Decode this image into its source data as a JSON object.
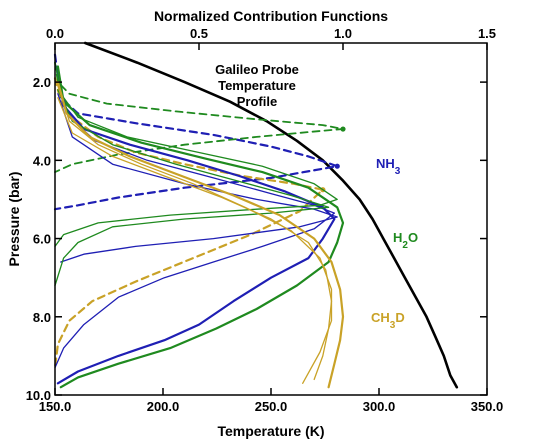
{
  "chart_data": {
    "type": "line",
    "title_top_axis": "Normalized Contribution Functions",
    "xlabel": "Temperature (K)",
    "ylabel": "Pressure (bar)",
    "xlim_bottom": [
      150,
      350
    ],
    "xlim_top": [
      0,
      1.5
    ],
    "ylim": [
      1.0,
      10.0
    ],
    "y_inverted": true,
    "grid": false,
    "x_ticks_bottom": [
      "150.0",
      "200.0",
      "250.0",
      "300.0",
      "350.0"
    ],
    "x_tick_values_bottom": [
      150,
      200,
      250,
      300,
      350
    ],
    "x_ticks_top": [
      "0.0",
      "0.5",
      "1.0",
      "1.5"
    ],
    "x_tick_values_top": [
      0,
      0.5,
      1.0,
      1.5
    ],
    "y_ticks": [
      "2.0",
      "4.0",
      "6.0",
      "8.0",
      "10.0"
    ],
    "y_tick_values": [
      2,
      4,
      6,
      8,
      10
    ],
    "annotations": [
      {
        "key": "galileo",
        "lines": [
          "Galileo Probe",
          "Temperature",
          "Profile"
        ],
        "color": "#000000"
      },
      {
        "key": "nh3",
        "text": "NH",
        "sub": "3",
        "color": "#1f1fb4"
      },
      {
        "key": "h2o",
        "text": "H",
        "sub": "2",
        "tail": "O",
        "color": "#1f8a1f"
      },
      {
        "key": "ch3d",
        "text": "CH",
        "sub": "3",
        "tail": "D",
        "color": "#c9a227"
      }
    ],
    "series": [
      {
        "key": "temperature",
        "color": "#000000",
        "width": 2.6,
        "style": "solid",
        "axis": "temperature",
        "points": [
          [
            164,
            1.0
          ],
          [
            188,
            1.5
          ],
          [
            210,
            2.0
          ],
          [
            231,
            2.5
          ],
          [
            248,
            3.0
          ],
          [
            262,
            3.5
          ],
          [
            274,
            4.0
          ],
          [
            283,
            4.5
          ],
          [
            291,
            5.0
          ],
          [
            297,
            5.5
          ],
          [
            302,
            6.0
          ],
          [
            307,
            6.5
          ],
          [
            312,
            7.0
          ],
          [
            317,
            7.5
          ],
          [
            322,
            8.0
          ],
          [
            326,
            8.5
          ],
          [
            330,
            9.0
          ],
          [
            333,
            9.5
          ],
          [
            336,
            9.8
          ]
        ]
      },
      {
        "key": "nh3-dashed",
        "color": "#1f1fb4",
        "width": 2.2,
        "style": "dashed",
        "axis": "contribution",
        "points": [
          [
            0.0,
            1.3
          ],
          [
            0.02,
            2.4
          ],
          [
            0.08,
            2.8
          ],
          [
            0.28,
            3.05
          ],
          [
            0.55,
            3.35
          ],
          [
            0.75,
            3.65
          ],
          [
            0.88,
            3.9
          ],
          [
            0.98,
            4.15
          ],
          [
            0.75,
            4.45
          ],
          [
            0.45,
            4.7
          ],
          [
            0.22,
            4.95
          ],
          [
            0.08,
            5.15
          ],
          [
            0.0,
            5.25
          ]
        ]
      },
      {
        "key": "h2o-dashed",
        "color": "#1f8a1f",
        "width": 1.8,
        "style": "dashed",
        "axis": "contribution",
        "points": [
          [
            0.0,
            1.5
          ],
          [
            0.01,
            2.0
          ],
          [
            0.05,
            2.3
          ],
          [
            0.18,
            2.55
          ],
          [
            0.42,
            2.75
          ],
          [
            0.7,
            2.95
          ],
          [
            0.93,
            3.1
          ],
          [
            1.0,
            3.2
          ],
          [
            0.92,
            3.25
          ],
          [
            0.7,
            3.4
          ],
          [
            0.45,
            3.6
          ],
          [
            0.22,
            3.85
          ],
          [
            0.06,
            4.1
          ],
          [
            0.0,
            4.3
          ]
        ]
      },
      {
        "key": "ch3d-dashed",
        "color": "#c9a227",
        "width": 2.2,
        "style": "dashed",
        "axis": "contribution",
        "points": [
          [
            0.0,
            1.9
          ],
          [
            0.02,
            2.5
          ],
          [
            0.06,
            2.9
          ],
          [
            0.15,
            3.4
          ],
          [
            0.28,
            3.8
          ],
          [
            0.45,
            4.1
          ],
          [
            0.65,
            4.4
          ],
          [
            0.83,
            4.6
          ],
          [
            0.93,
            4.75
          ],
          [
            0.85,
            5.3
          ],
          [
            0.68,
            5.9
          ],
          [
            0.48,
            6.5
          ],
          [
            0.28,
            7.1
          ],
          [
            0.13,
            7.6
          ],
          [
            0.05,
            8.1
          ],
          [
            0.01,
            8.7
          ],
          [
            0.0,
            9.3
          ]
        ]
      },
      {
        "key": "blue-a",
        "color": "#1f1fb4",
        "width": 2.2,
        "style": "solid",
        "axis": "contribution",
        "points": [
          [
            0.01,
            1.8
          ],
          [
            0.03,
            2.6
          ],
          [
            0.1,
            3.2
          ],
          [
            0.26,
            3.6
          ],
          [
            0.46,
            4.0
          ],
          [
            0.64,
            4.4
          ],
          [
            0.8,
            4.8
          ],
          [
            0.93,
            5.2
          ],
          [
            0.97,
            5.5
          ],
          [
            0.93,
            6.0
          ],
          [
            0.88,
            6.5
          ],
          [
            0.75,
            7.0
          ],
          [
            0.62,
            7.6
          ],
          [
            0.5,
            8.2
          ],
          [
            0.38,
            8.6
          ],
          [
            0.22,
            9.0
          ],
          [
            0.08,
            9.4
          ],
          [
            0.01,
            9.7
          ]
        ]
      },
      {
        "key": "blue-b",
        "color": "#1f1fb4",
        "width": 1.3,
        "style": "solid",
        "axis": "contribution",
        "points": [
          [
            0.01,
            2.0
          ],
          [
            0.05,
            2.9
          ],
          [
            0.14,
            3.5
          ],
          [
            0.32,
            4.0
          ],
          [
            0.55,
            4.45
          ],
          [
            0.75,
            4.85
          ],
          [
            0.9,
            5.15
          ],
          [
            0.97,
            5.35
          ],
          [
            0.9,
            5.75
          ],
          [
            0.72,
            6.2
          ],
          [
            0.55,
            6.6
          ],
          [
            0.38,
            7.0
          ],
          [
            0.22,
            7.5
          ],
          [
            0.1,
            8.2
          ],
          [
            0.03,
            8.8
          ],
          [
            0.0,
            9.3
          ]
        ]
      },
      {
        "key": "blue-c",
        "color": "#1f1fb4",
        "width": 1.3,
        "style": "solid",
        "axis": "contribution",
        "points": [
          [
            0.01,
            2.3
          ],
          [
            0.06,
            3.4
          ],
          [
            0.2,
            4.1
          ],
          [
            0.45,
            4.6
          ],
          [
            0.7,
            5.0
          ],
          [
            0.9,
            5.25
          ],
          [
            0.98,
            5.45
          ],
          [
            0.85,
            5.7
          ],
          [
            0.55,
            6.0
          ],
          [
            0.28,
            6.2
          ],
          [
            0.1,
            6.4
          ],
          [
            0.02,
            6.6
          ]
        ]
      },
      {
        "key": "green-a",
        "color": "#1f8a1f",
        "width": 2.2,
        "style": "solid",
        "axis": "contribution",
        "points": [
          [
            0.01,
            1.6
          ],
          [
            0.03,
            2.5
          ],
          [
            0.12,
            3.1
          ],
          [
            0.3,
            3.55
          ],
          [
            0.52,
            3.95
          ],
          [
            0.72,
            4.3
          ],
          [
            0.88,
            4.7
          ],
          [
            0.98,
            5.2
          ],
          [
            1.0,
            5.6
          ],
          [
            0.98,
            6.1
          ],
          [
            0.95,
            6.6
          ],
          [
            0.84,
            7.2
          ],
          [
            0.7,
            7.8
          ],
          [
            0.56,
            8.3
          ],
          [
            0.4,
            8.8
          ],
          [
            0.22,
            9.2
          ],
          [
            0.08,
            9.55
          ],
          [
            0.02,
            9.8
          ]
        ]
      },
      {
        "key": "green-b",
        "color": "#1f8a1f",
        "width": 1.3,
        "style": "solid",
        "axis": "contribution",
        "points": [
          [
            0.01,
            2.2
          ],
          [
            0.06,
            3.0
          ],
          [
            0.2,
            3.6
          ],
          [
            0.42,
            4.1
          ],
          [
            0.62,
            4.5
          ],
          [
            0.82,
            4.9
          ],
          [
            0.95,
            5.2
          ],
          [
            0.75,
            5.35
          ],
          [
            0.45,
            5.5
          ],
          [
            0.2,
            5.7
          ],
          [
            0.08,
            6.1
          ],
          [
            0.03,
            6.5
          ],
          [
            0.0,
            7.2
          ]
        ]
      },
      {
        "key": "green-c",
        "color": "#1f8a1f",
        "width": 1.3,
        "style": "solid",
        "axis": "contribution",
        "points": [
          [
            0.0,
            1.5
          ],
          [
            0.02,
            2.3
          ],
          [
            0.08,
            2.9
          ],
          [
            0.25,
            3.4
          ],
          [
            0.5,
            3.8
          ],
          [
            0.72,
            4.15
          ],
          [
            0.9,
            4.6
          ],
          [
            0.98,
            5.0
          ],
          [
            0.92,
            5.15
          ],
          [
            0.7,
            5.25
          ],
          [
            0.4,
            5.4
          ],
          [
            0.15,
            5.6
          ],
          [
            0.03,
            5.9
          ],
          [
            0.0,
            6.2
          ]
        ]
      },
      {
        "key": "ch3d-a",
        "color": "#c9a227",
        "width": 2.2,
        "style": "solid",
        "axis": "contribution",
        "points": [
          [
            0.01,
            2.0
          ],
          [
            0.04,
            2.8
          ],
          [
            0.12,
            3.4
          ],
          [
            0.26,
            3.9
          ],
          [
            0.44,
            4.4
          ],
          [
            0.62,
            4.9
          ],
          [
            0.78,
            5.4
          ],
          [
            0.9,
            6.0
          ],
          [
            0.96,
            6.6
          ],
          [
            0.99,
            7.3
          ],
          [
            1.0,
            8.0
          ],
          [
            0.99,
            8.6
          ],
          [
            0.97,
            9.2
          ],
          [
            0.95,
            9.8
          ]
        ]
      },
      {
        "key": "ch3d-b",
        "color": "#c9a227",
        "width": 1.3,
        "style": "solid",
        "axis": "contribution",
        "points": [
          [
            0.01,
            2.1
          ],
          [
            0.05,
            3.0
          ],
          [
            0.15,
            3.6
          ],
          [
            0.3,
            4.1
          ],
          [
            0.48,
            4.6
          ],
          [
            0.66,
            5.2
          ],
          [
            0.82,
            5.8
          ],
          [
            0.92,
            6.5
          ],
          [
            0.96,
            7.3
          ],
          [
            0.96,
            8.1
          ],
          [
            0.92,
            8.9
          ],
          [
            0.86,
            9.7
          ]
        ]
      },
      {
        "key": "ch3d-c",
        "color": "#c9a227",
        "width": 1.3,
        "style": "solid",
        "axis": "contribution",
        "points": [
          [
            0.01,
            2.4
          ],
          [
            0.06,
            3.3
          ],
          [
            0.2,
            3.9
          ],
          [
            0.38,
            4.4
          ],
          [
            0.58,
            4.95
          ],
          [
            0.75,
            5.5
          ],
          [
            0.88,
            6.1
          ],
          [
            0.94,
            6.8
          ],
          [
            0.96,
            7.6
          ],
          [
            0.95,
            8.3
          ],
          [
            0.93,
            9.0
          ],
          [
            0.9,
            9.6
          ]
        ]
      }
    ]
  }
}
